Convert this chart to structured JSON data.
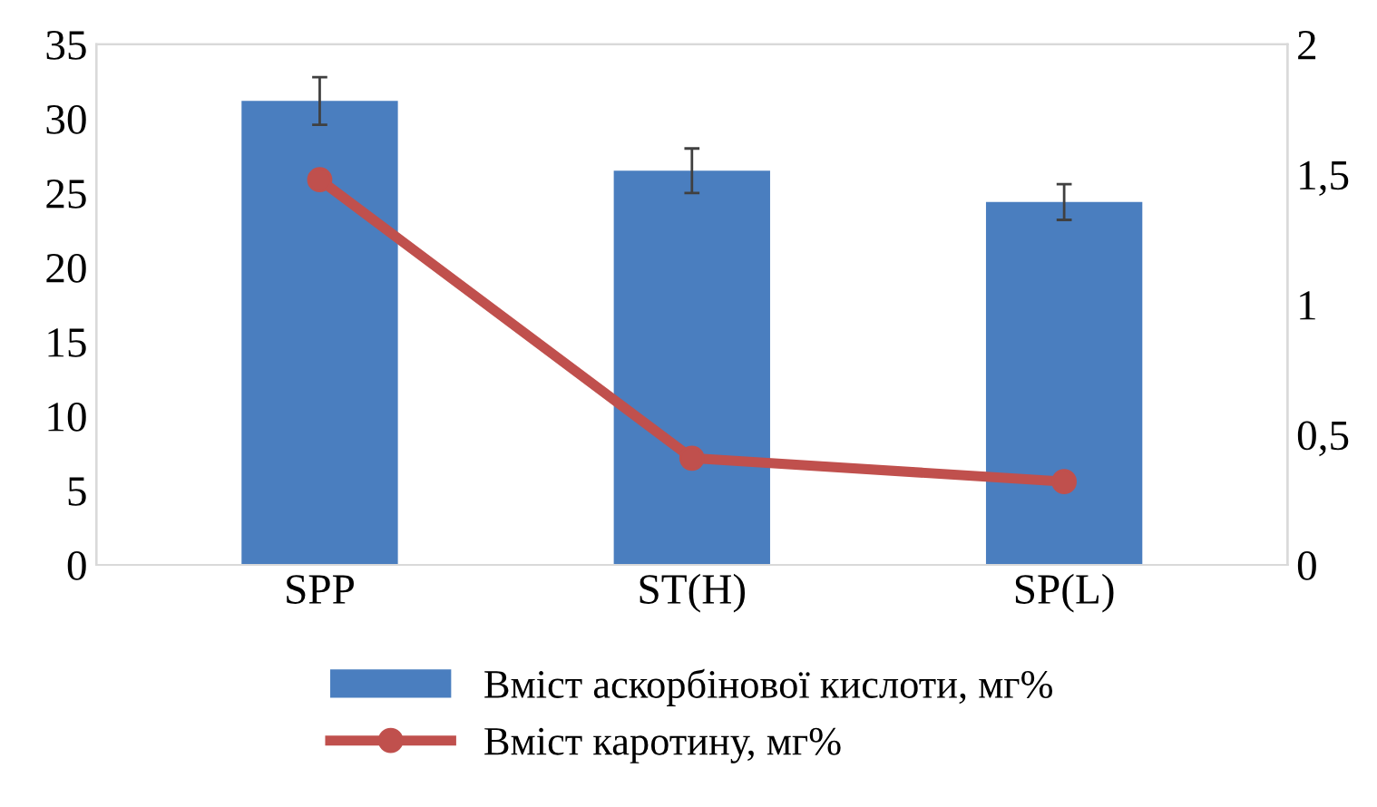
{
  "chart_data": {
    "type": "bar",
    "categories": [
      "SPP",
      "ST(H)",
      "SP(L)"
    ],
    "series": [
      {
        "name": "Вміст аскорбінової кислоти, мг%",
        "color": "#4a7ebf",
        "values": [
          31.2,
          26.5,
          24.4
        ],
        "errors": [
          1.6,
          1.5,
          1.2
        ]
      },
      {
        "name": "Вміст каротину, мг%",
        "type": "line",
        "axis": "y2",
        "color": "#c0504d",
        "values": [
          1.48,
          0.41,
          0.32
        ],
        "marker": "circle"
      }
    ],
    "ylim": [
      0,
      35
    ],
    "yticks": [
      0,
      5,
      10,
      15,
      20,
      25,
      30,
      35
    ],
    "y2lim": [
      0,
      2
    ],
    "y2ticks": [
      0,
      {
        "value": 0.5,
        "label": "0,5"
      },
      1,
      {
        "value": 1.5,
        "label": "1,5"
      },
      2
    ],
    "legend": "bottom",
    "grid": false
  }
}
